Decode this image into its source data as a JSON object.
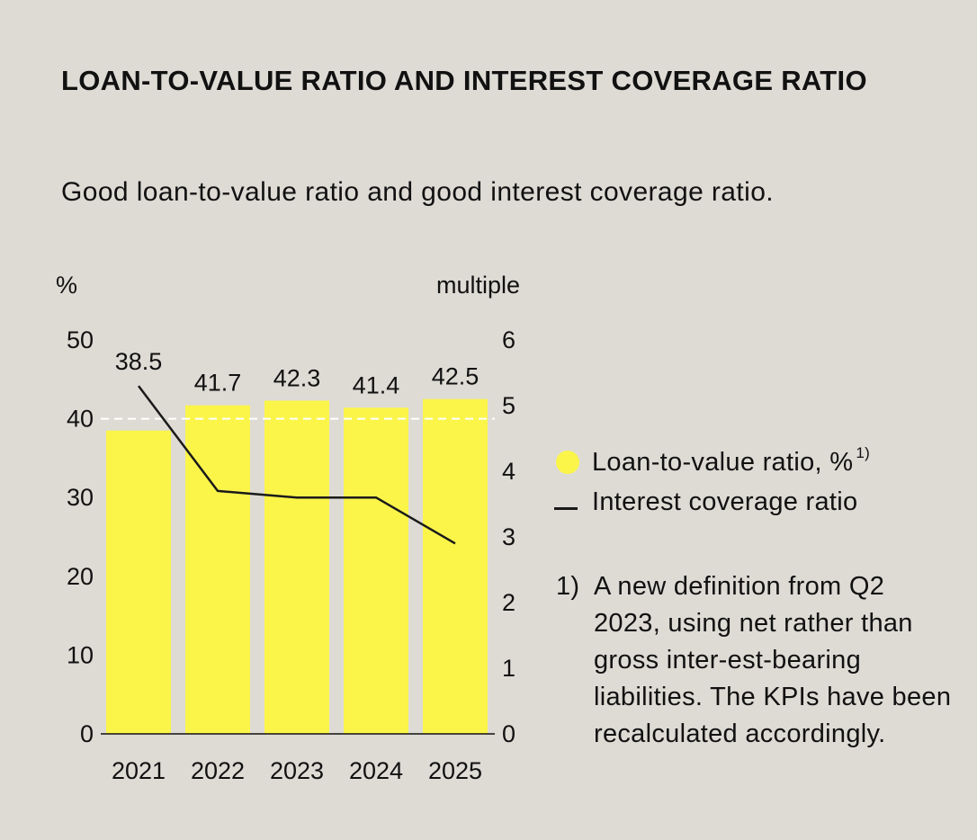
{
  "title": "LOAN-TO-VALUE RATIO AND INTEREST COVERAGE RATIO",
  "subtitle": "Good loan-to-value ratio and good interest coverage ratio.",
  "chart_data": {
    "type": "bar",
    "categories": [
      "2021",
      "2022",
      "2023",
      "2024",
      "2025"
    ],
    "series": [
      {
        "name": "Loan-to-value ratio, %",
        "axis": "left",
        "type": "bar",
        "color": "#fbf54a",
        "values": [
          38.5,
          41.7,
          42.3,
          41.4,
          42.5
        ],
        "labels": [
          "38.5",
          "41.7",
          "42.3",
          "41.4",
          "42.5"
        ]
      },
      {
        "name": "Interest coverage ratio",
        "axis": "right",
        "type": "line",
        "color": "#1a1a1a",
        "values": [
          5.3,
          3.7,
          3.6,
          3.6,
          2.9
        ]
      }
    ],
    "reference_line": {
      "axis": "left",
      "value": 40,
      "style": "dashed",
      "color": "#ffffff"
    },
    "y_left": {
      "label": "%",
      "ticks": [
        "0",
        "10",
        "20",
        "30",
        "40",
        "50"
      ],
      "range": [
        0,
        50
      ]
    },
    "y_right": {
      "label": "multiple",
      "ticks": [
        "0",
        "1",
        "2",
        "3",
        "4",
        "5",
        "6"
      ],
      "range": [
        0,
        6
      ]
    },
    "grid": false,
    "legend_placement": "right"
  },
  "legend": {
    "items": [
      {
        "label": "Loan-to-value ratio, %",
        "marker": "1)",
        "color": "#fbf54a",
        "shape": "dot"
      },
      {
        "label": "Interest coverage ratio",
        "marker": "",
        "color": "#1a1a1a",
        "shape": "line"
      }
    ]
  },
  "footnote": {
    "marker": "1)",
    "text": "A new definition from Q2 2023, using net rather than gross inter-est-bearing liabilities. The KPIs have been recalculated accordingly."
  }
}
